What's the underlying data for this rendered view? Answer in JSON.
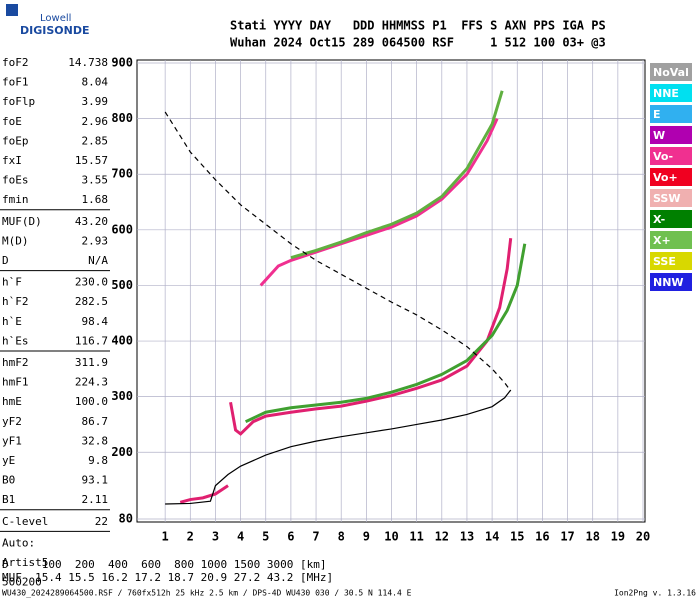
{
  "logo": {
    "line1": "Lowell",
    "line2": "DIGISONDE"
  },
  "header": {
    "labels": "Stati YYYY DAY   DDD HHMMSS P1  FFS S AXN PPS IGA PS",
    "values": "Wuhan 2024 Oct15 289 064500 RSF     1 512 100 03+ @3"
  },
  "parameters": [
    [
      [
        "foF2",
        "14.738"
      ],
      [
        "foF1",
        "8.04"
      ],
      [
        "foFlp",
        "3.99"
      ],
      [
        "foE",
        "2.96"
      ],
      [
        "foEp",
        "2.85"
      ],
      [
        "fxI",
        "15.57"
      ],
      [
        "foEs",
        "3.55"
      ],
      [
        "fmin",
        "1.68"
      ]
    ],
    [
      [
        "MUF(D)",
        "43.20"
      ],
      [
        "M(D)",
        "2.93"
      ],
      [
        "D",
        "N/A"
      ]
    ],
    [
      [
        "h`F",
        "230.0"
      ],
      [
        "h`F2",
        "282.5"
      ],
      [
        "h`E",
        "98.4"
      ],
      [
        "h`Es",
        "116.7"
      ]
    ],
    [
      [
        "hmF2",
        "311.9"
      ],
      [
        "hmF1",
        "224.3"
      ],
      [
        "hmE",
        "100.0"
      ],
      [
        "yF2",
        "86.7"
      ],
      [
        "yF1",
        "32.8"
      ],
      [
        "yE",
        "9.8"
      ],
      [
        "B0",
        "93.1"
      ],
      [
        "B1",
        "2.11"
      ]
    ],
    [
      [
        "C-level",
        "22"
      ]
    ],
    [
      [
        "Auto:"
      ],
      [
        "Artist5"
      ],
      [
        "500200"
      ]
    ]
  ],
  "modes": [
    {
      "name": "NoVal",
      "color": "#a0a0a0"
    },
    {
      "name": "NNE",
      "color": "#00e0f0"
    },
    {
      "name": "E",
      "color": "#30b0f0"
    },
    {
      "name": "W",
      "color": "#b000b0"
    },
    {
      "name": "Vo-",
      "color": "#f03090"
    },
    {
      "name": "Vo+",
      "color": "#f00020"
    },
    {
      "name": "SSW",
      "color": "#f0b0b0"
    },
    {
      "name": "X-",
      "color": "#008000"
    },
    {
      "name": "X+",
      "color": "#70c050"
    },
    {
      "name": "SSE",
      "color": "#d8d800"
    },
    {
      "name": "NNW",
      "color": "#2020e0"
    }
  ],
  "chart_data": {
    "type": "line",
    "xlim": [
      0,
      20
    ],
    "xticks": [
      1,
      2,
      3,
      4,
      5,
      6,
      7,
      8,
      9,
      10,
      11,
      12,
      13,
      14,
      15,
      16,
      17,
      18,
      19,
      20
    ],
    "ylim": [
      80,
      900
    ],
    "yticks": [
      80,
      200,
      300,
      400,
      500,
      600,
      700,
      800,
      900
    ],
    "grid": true,
    "series": [
      {
        "color": "#e02070",
        "x": [
          3.6,
          3.8,
          4.0,
          4.5,
          5,
          6,
          7,
          8,
          9,
          10,
          11,
          12,
          13,
          13.8,
          14.3,
          14.6,
          14.74
        ],
        "values": [
          290,
          240,
          233,
          255,
          265,
          272,
          278,
          283,
          292,
          302,
          315,
          330,
          355,
          400,
          460,
          530,
          585
        ]
      },
      {
        "color": "#40a030",
        "x": [
          4.2,
          5,
          6,
          7,
          8,
          9,
          10,
          11,
          12,
          13,
          14,
          14.6,
          15.0,
          15.2,
          15.3
        ],
        "values": [
          255,
          272,
          280,
          285,
          290,
          297,
          308,
          322,
          340,
          365,
          410,
          455,
          500,
          550,
          575
        ]
      },
      {
        "color": "#f03090",
        "x": [
          4.8,
          5.5,
          6,
          7,
          8,
          9,
          10,
          11,
          12,
          13,
          13.8,
          14.2
        ],
        "values": [
          500,
          535,
          545,
          560,
          575,
          590,
          605,
          625,
          655,
          700,
          760,
          800
        ]
      },
      {
        "color": "#60b040",
        "x": [
          6,
          7,
          8,
          9,
          10,
          11,
          12,
          13,
          14,
          14.4
        ],
        "values": [
          550,
          563,
          578,
          595,
          610,
          630,
          660,
          710,
          790,
          850
        ]
      },
      {
        "color": "#e02070",
        "x": [
          1.6,
          2,
          2.5,
          3,
          3.5
        ],
        "values": [
          110,
          115,
          118,
          125,
          140
        ]
      },
      {
        "color": "#000000",
        "x": [
          1,
          2,
          2.8,
          3,
          3.5,
          4,
          5,
          6,
          7,
          8,
          9,
          10,
          11,
          12,
          13,
          14,
          14.5,
          14.74
        ],
        "values": [
          107,
          108,
          112,
          140,
          160,
          175,
          195,
          210,
          220,
          228,
          235,
          242,
          250,
          258,
          268,
          282,
          298,
          312
        ]
      },
      {
        "color": "#000000",
        "dashed": true,
        "x": [
          1,
          2,
          3,
          4,
          5,
          6,
          7,
          8,
          9,
          10,
          11,
          12,
          13,
          14,
          14.5,
          14.74
        ],
        "values": [
          812,
          740,
          690,
          645,
          610,
          575,
          545,
          520,
          495,
          470,
          447,
          420,
          390,
          350,
          325,
          310
        ]
      }
    ]
  },
  "bottom": {
    "d_row": "D     100  200  400  600  800 1000 1500 3000 [km]",
    "muf_row": "MUF  15.4 15.5 16.2 17.2 18.7 20.9 27.2 43.2 [MHz]"
  },
  "footer": {
    "left": "WU430_2024289064500.RSF / 760fx512h 25 kHz 2.5 km / DPS-4D WU430 030 / 30.5 N 114.4 E",
    "right": "Ion2Png v. 1.3.16"
  }
}
